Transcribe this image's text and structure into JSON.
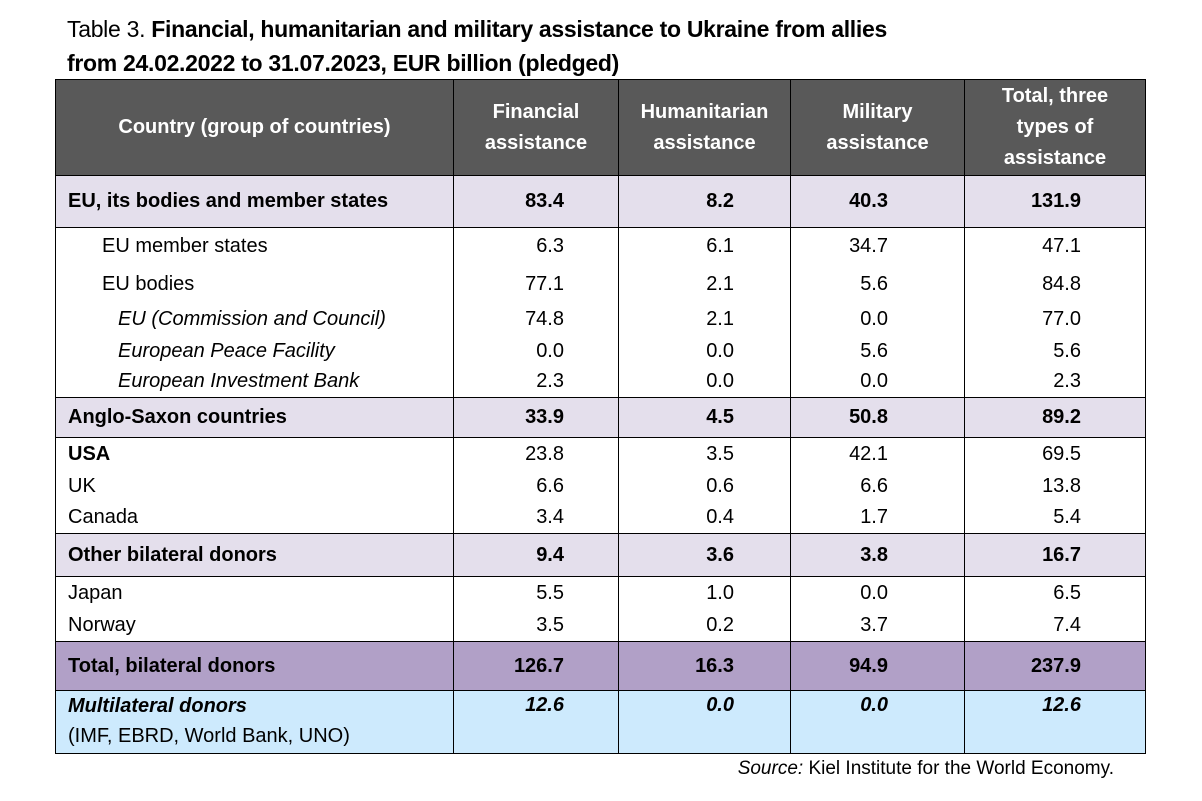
{
  "title": {
    "prefix": "Table 3. ",
    "line1": "Financial, humanitarian and military assistance to Ukraine from allies",
    "line2": "from 24.02.2022 to 31.07.2023, EUR billion (pledged)"
  },
  "table": {
    "headers": [
      "Country (group of countries)",
      "Financial assistance",
      "Humanitarian assistance",
      "Military assistance",
      "Total, three types of assistance"
    ],
    "rows": [
      {
        "name": "EU, its bodies and member states",
        "style": "group",
        "values": [
          "83.4",
          "8.2",
          "40.3",
          "131.9"
        ]
      },
      {
        "name": "EU member states",
        "style": "indent1",
        "values": [
          "6.3",
          "6.1",
          "34.7",
          "47.1"
        ]
      },
      {
        "name": "EU bodies",
        "style": "indent1",
        "values": [
          "77.1",
          "2.1",
          "5.6",
          "84.8"
        ]
      },
      {
        "name": "EU (Commission and Council)",
        "style": "indent2",
        "values": [
          "74.8",
          "2.1",
          "0.0",
          "77.0"
        ]
      },
      {
        "name": "European Peace Facility",
        "style": "indent2",
        "values": [
          "0.0",
          "0.0",
          "5.6",
          "5.6"
        ]
      },
      {
        "name": "European Investment Bank",
        "style": "indent2",
        "values": [
          "2.3",
          "0.0",
          "0.0",
          "2.3"
        ]
      },
      {
        "name": "Anglo-Saxon countries",
        "style": "group",
        "values": [
          "33.9",
          "4.5",
          "50.8",
          "89.2"
        ]
      },
      {
        "name": "USA",
        "style": "boldname",
        "values": [
          "23.8",
          "3.5",
          "42.1",
          "69.5"
        ]
      },
      {
        "name": "UK",
        "style": "plain",
        "values": [
          "6.6",
          "0.6",
          "6.6",
          "13.8"
        ]
      },
      {
        "name": "Canada",
        "style": "plain",
        "values": [
          "3.4",
          "0.4",
          "1.7",
          "5.4"
        ]
      },
      {
        "name": "Other bilateral donors",
        "style": "group",
        "values": [
          "9.4",
          "3.6",
          "3.8",
          "16.7"
        ]
      },
      {
        "name": "Japan",
        "style": "plain",
        "values": [
          "5.5",
          "1.0",
          "0.0",
          "6.5"
        ]
      },
      {
        "name": "Norway",
        "style": "plain",
        "values": [
          "3.5",
          "0.2",
          "3.7",
          "7.4"
        ]
      },
      {
        "name": "Total, bilateral donors",
        "style": "total",
        "values": [
          "126.7",
          "16.3",
          "94.9",
          "237.9"
        ]
      }
    ],
    "multilateral": {
      "name": "Multilateral donors",
      "sub": "(IMF, EBRD, World Bank, UNO)",
      "values": [
        "12.6",
        "0.0",
        "0.0",
        "12.6"
      ]
    }
  },
  "source": {
    "label": "Source:",
    "text": " Kiel Institute for the World Economy."
  },
  "colors": {
    "header_bg": "#595959",
    "group_bg": "#e4dfec",
    "total_bg": "#b1a0c7",
    "multilateral_bg": "#cdeafd"
  }
}
